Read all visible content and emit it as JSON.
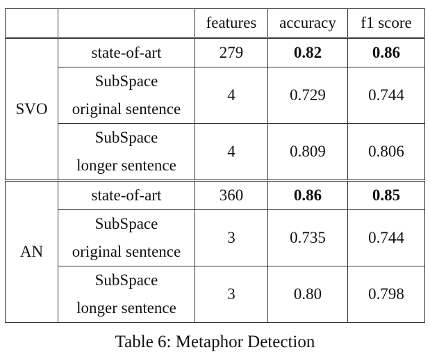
{
  "header": {
    "group_col": "",
    "method_col": "",
    "features": "features",
    "accuracy": "accuracy",
    "f1": "f1 score"
  },
  "groups": [
    {
      "name": "SVO",
      "rows": [
        {
          "method_line1": "state-of-art",
          "method_line2": "",
          "features": "279",
          "accuracy": "0.82",
          "f1": "0.86",
          "best_accuracy": true,
          "best_f1": true
        },
        {
          "method_line1": "SubSpace",
          "method_line2": "original sentence",
          "features": "4",
          "accuracy": "0.729",
          "f1": "0.744",
          "best_accuracy": false,
          "best_f1": false
        },
        {
          "method_line1": "SubSpace",
          "method_line2": "longer sentence",
          "features": "4",
          "accuracy": "0.809",
          "f1": "0.806",
          "best_accuracy": false,
          "best_f1": false
        }
      ]
    },
    {
      "name": "AN",
      "rows": [
        {
          "method_line1": "state-of-art",
          "method_line2": "",
          "features": "360",
          "accuracy": "0.86",
          "f1": "0.85",
          "best_accuracy": true,
          "best_f1": true
        },
        {
          "method_line1": "SubSpace",
          "method_line2": "original sentence",
          "features": "3",
          "accuracy": "0.735",
          "f1": "0.744",
          "best_accuracy": false,
          "best_f1": false
        },
        {
          "method_line1": "SubSpace",
          "method_line2": "longer sentence",
          "features": "3",
          "accuracy": "0.80",
          "f1": "0.798",
          "best_accuracy": false,
          "best_f1": false
        }
      ]
    }
  ],
  "caption": "Table 6: Metaphor Detection"
}
